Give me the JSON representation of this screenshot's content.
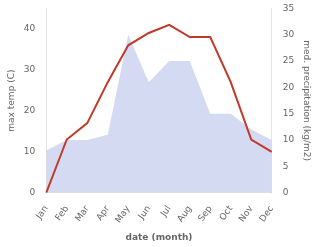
{
  "chart_data": {
    "type": "line",
    "xlabel": "date (month)",
    "ylabel": "max temp (C)",
    "y2label": "med. precipitation (kg/m2)",
    "categories": [
      "Jan",
      "Feb",
      "Mar",
      "Apr",
      "May",
      "Jun",
      "Jul",
      "Aug",
      "Sep",
      "Oct",
      "Nov",
      "Dec"
    ],
    "series": [
      {
        "type": "area",
        "axis": "y2",
        "color": "#b0bce8",
        "values": [
          8,
          10,
          10,
          11,
          30,
          21,
          25,
          25,
          15,
          15,
          12,
          10
        ]
      },
      {
        "type": "line",
        "color": "#c0392b",
        "values": [
          0,
          13,
          17,
          27,
          36,
          39,
          41,
          38,
          38,
          27,
          13,
          10
        ]
      }
    ],
    "ylim": [
      0,
      45
    ],
    "yticks": [
      0,
      10,
      20,
      30,
      40
    ],
    "y2lim": [
      0,
      35
    ],
    "y2ticks": [
      0,
      5,
      10,
      15,
      20,
      25,
      30,
      35
    ],
    "grid": false
  }
}
